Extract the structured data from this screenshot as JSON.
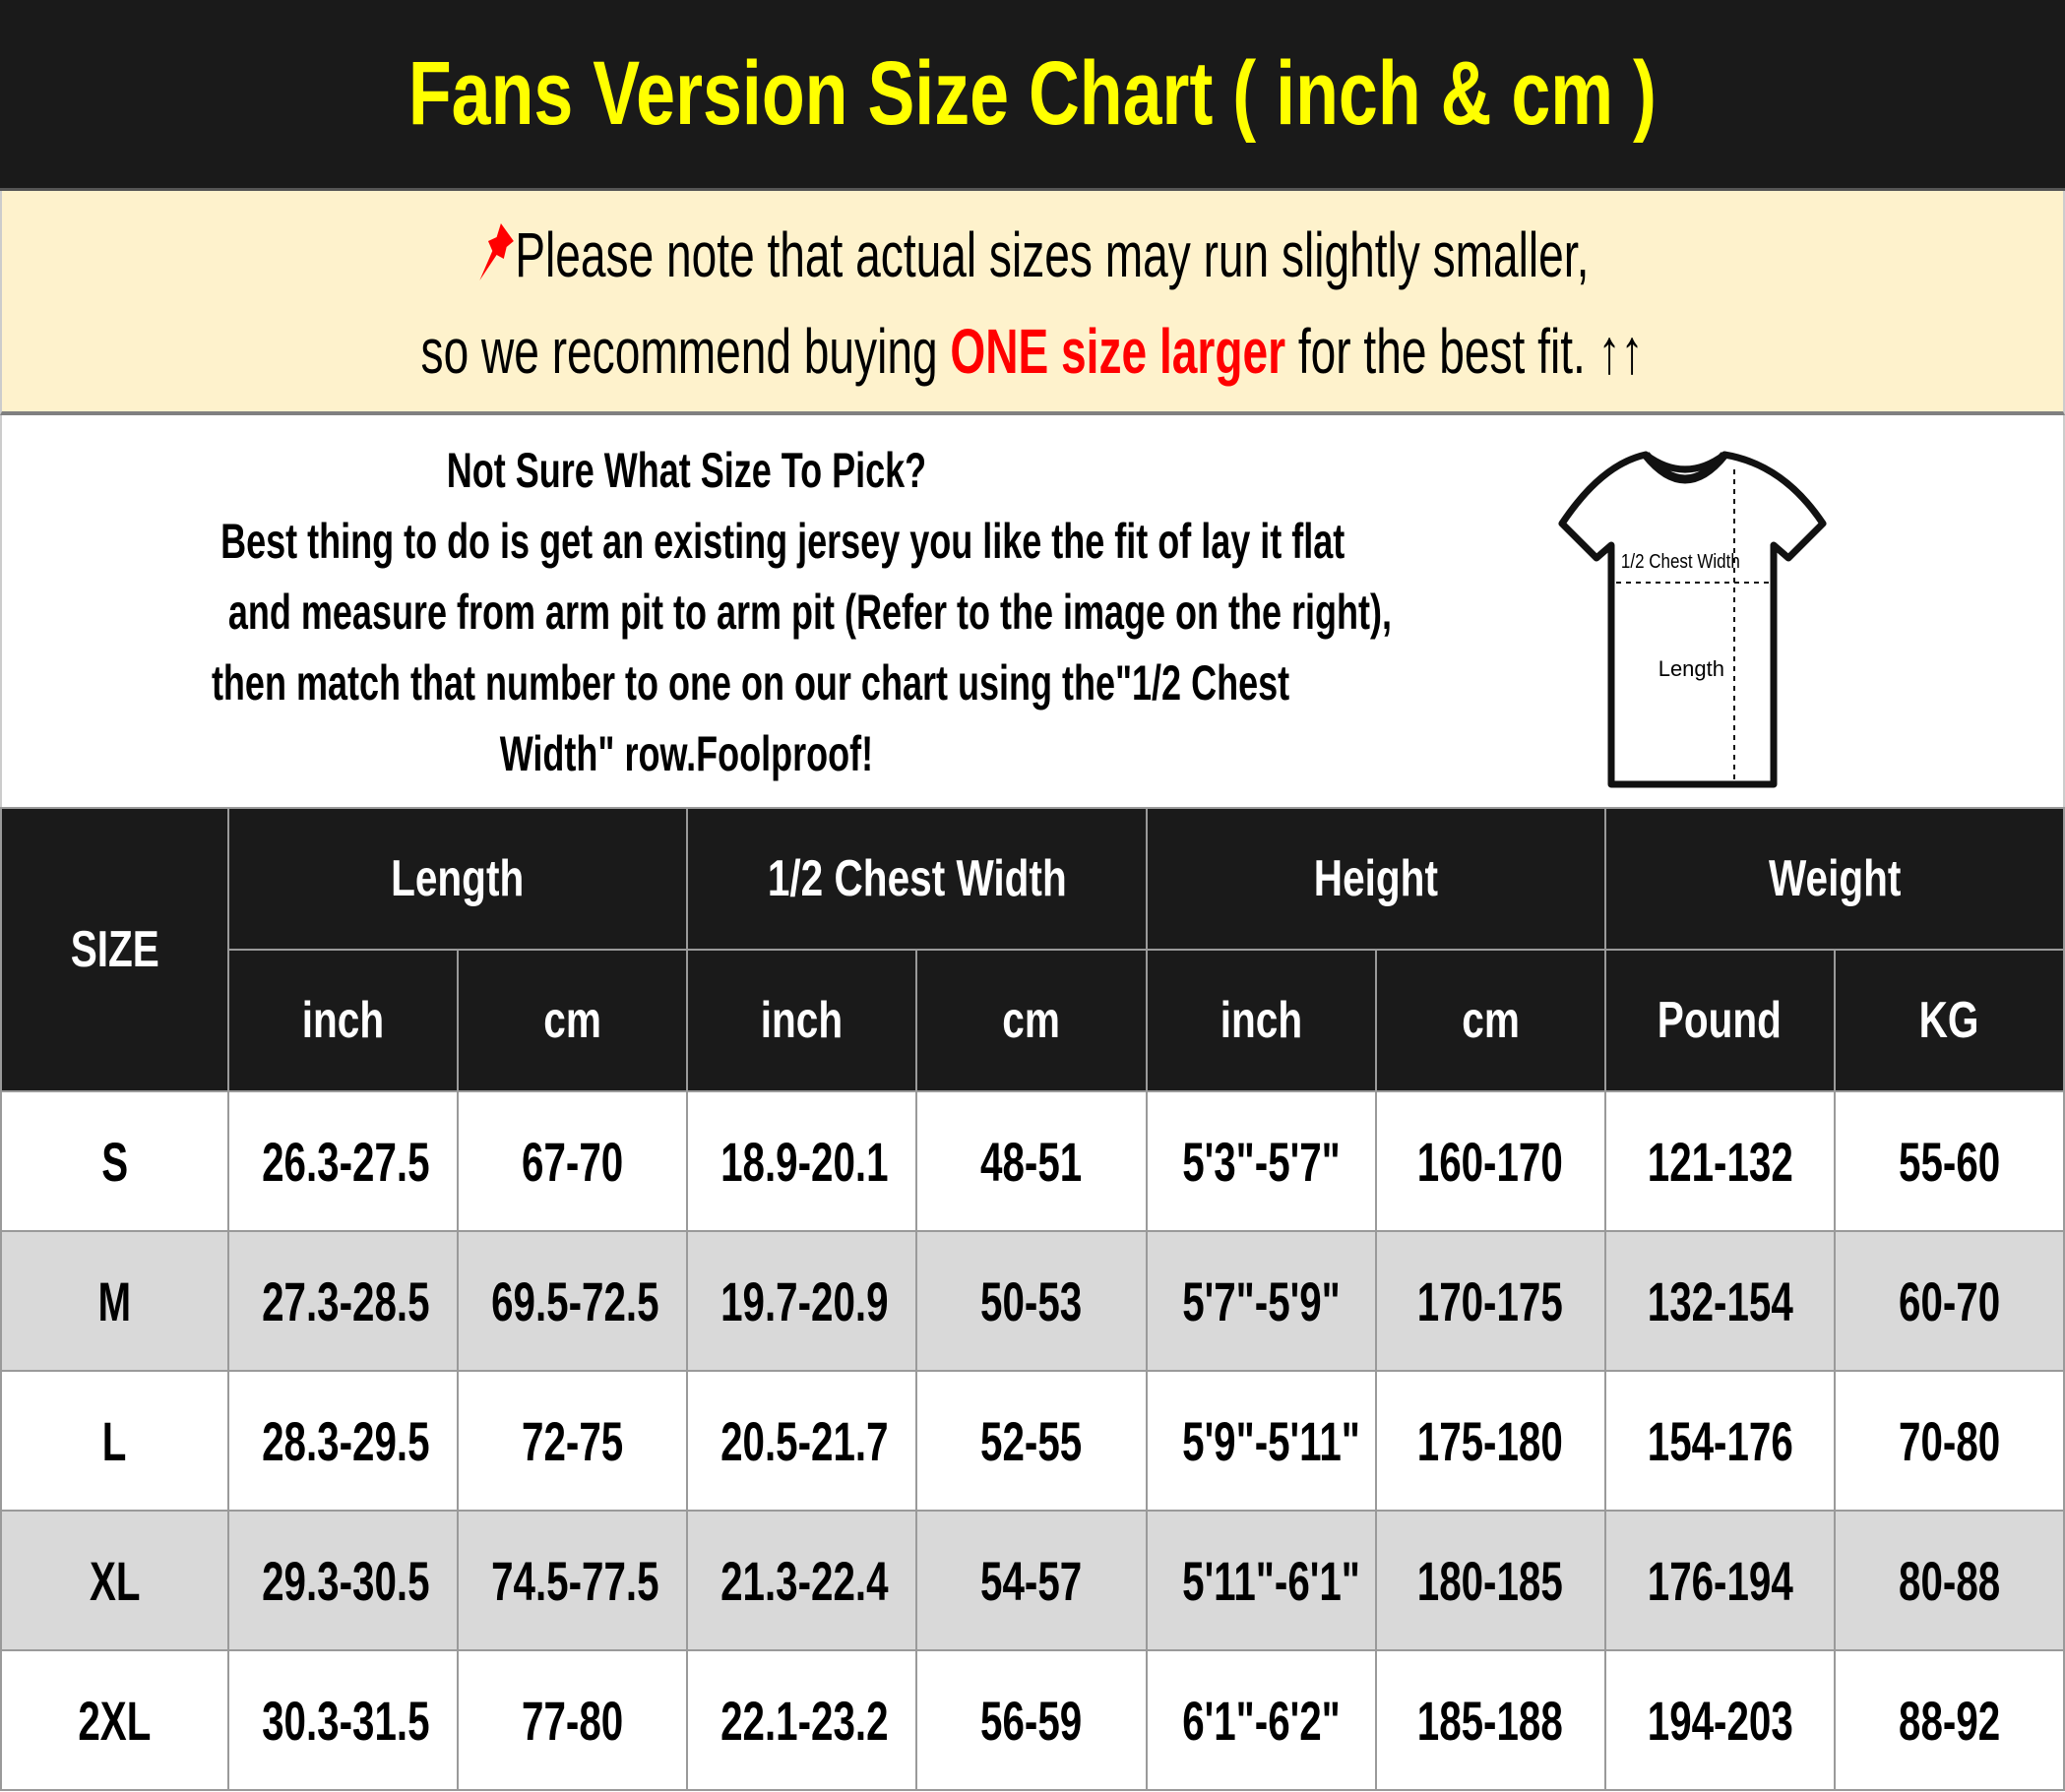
{
  "title": "Fans Version Size Chart ( inch & cm )",
  "notice": {
    "icon": "pushpin-icon",
    "line1": "Please note that actual sizes may run slightly smaller,",
    "line2_before": "so we recommend buying ",
    "line2_highlight": "ONE size larger",
    "line2_after": " for the best fit. ↑↑",
    "highlight_color": "#ff0000"
  },
  "guide": {
    "heading": "Not Sure What Size To Pick?",
    "line1": "Best thing to do is get an existing jersey you like the fit of lay it flat",
    "line2": "and measure from arm pit to arm pit (Refer to the image on the right),",
    "line3": "then match that number to one on our chart using the\"1/2 Chest",
    "line4": "Width\" row.Foolproof!",
    "diagram": {
      "chest_label": "1/2 Chest Width",
      "length_label": "Length"
    }
  },
  "table": {
    "size_header": "SIZE",
    "groups": [
      "Length",
      "1/2 Chest Width",
      "Height",
      "Weight"
    ],
    "units": [
      "inch",
      "cm",
      "inch",
      "cm",
      "inch",
      "cm",
      "Pound",
      "KG"
    ],
    "rows": [
      [
        "S",
        "26.3-27.5",
        "67-70",
        "18.9-20.1",
        "48-51",
        "5'3\"-5'7\"",
        "160-170",
        "121-132",
        "55-60"
      ],
      [
        "M",
        "27.3-28.5",
        "69.5-72.5",
        "19.7-20.9",
        "50-53",
        "5'7\"-5'9\"",
        "170-175",
        "132-154",
        "60-70"
      ],
      [
        "L",
        "28.3-29.5",
        "72-75",
        "20.5-21.7",
        "52-55",
        "5'9\"-5'11\"",
        "175-180",
        "154-176",
        "70-80"
      ],
      [
        "XL",
        "29.3-30.5",
        "74.5-77.5",
        "21.3-22.4",
        "54-57",
        "5'11\"-6'1\"",
        "180-185",
        "176-194",
        "80-88"
      ],
      [
        "2XL",
        "30.3-31.5",
        "77-80",
        "22.1-23.2",
        "56-59",
        "6'1\"-6'2\"",
        "185-188",
        "194-203",
        "88-92"
      ]
    ]
  }
}
